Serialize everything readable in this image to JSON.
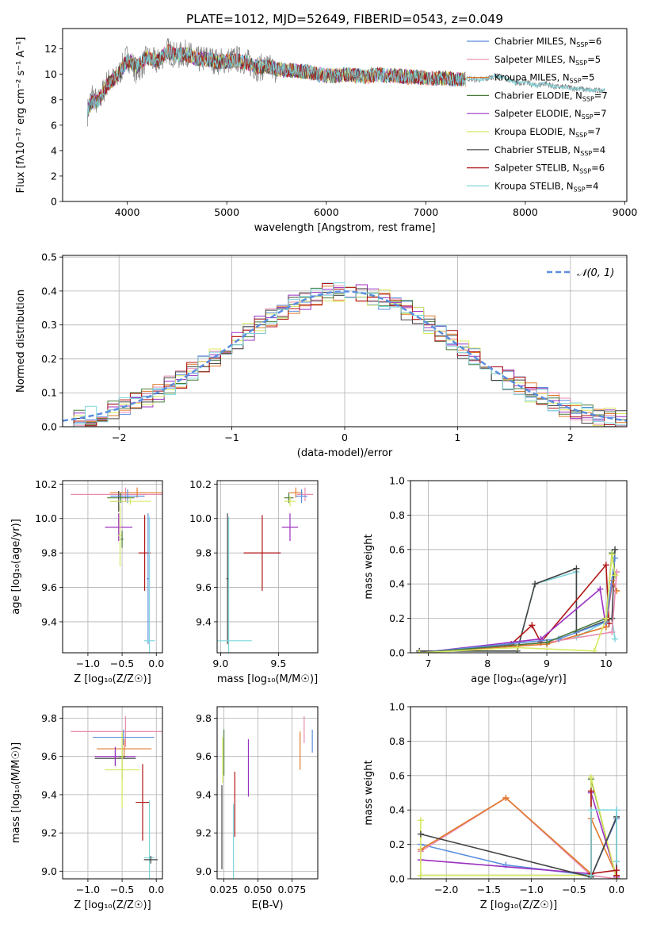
{
  "figure": {
    "title": "PLATE=1012, MJD=52649, FIBERID=0543, z=0.049"
  },
  "colors": {
    "chabrier_miles": "#5b8ee0",
    "salpeter_miles": "#e88ab0",
    "kroupa_miles": "#e07a2c",
    "chabrier_elodie": "#4a7a3a",
    "salpeter_elodie": "#9b30c0",
    "kroupa_elodie": "#d7e860",
    "chabrier_stelib": "#444444",
    "salpeter_stelib": "#b01515",
    "kroupa_stelib": "#7fd6dc",
    "spectrum": "#808080",
    "grid": "#b0b0b0",
    "normal_curve": "#5b8ee0"
  },
  "chart_data": [
    {
      "id": "spectrum",
      "type": "line",
      "xlabel": "wavelength [Angstrom, rest frame]",
      "ylabel": "Flux [fλ10⁻¹⁷ erg cm⁻² s⁻¹ A⁻¹]",
      "xlim": [
        3350,
        9020
      ],
      "ylim": [
        0,
        13.6
      ],
      "xticks": [
        4000,
        5000,
        6000,
        7000,
        8000,
        9000
      ],
      "yticks": [
        0,
        2,
        4,
        6,
        8,
        10,
        12
      ],
      "grid": false,
      "legend": "top-right",
      "data_flux": {
        "x": [
          3600,
          3650,
          3700,
          3800,
          3900,
          4000,
          4100,
          4200,
          4300,
          4400,
          4500,
          4600,
          4700,
          4800,
          4900,
          5000,
          5100,
          5200,
          5300,
          5400,
          5500,
          5600,
          5700,
          5800,
          5900,
          6000,
          6100,
          6200,
          6300,
          6400,
          6500,
          6600,
          6700,
          6800,
          6900,
          7000,
          7100,
          7200,
          7300,
          7400,
          7500,
          7600,
          7700,
          7800,
          7900,
          8000,
          8100,
          8200,
          8300,
          8400,
          8500,
          8600,
          8700,
          8800
        ],
        "y": [
          7.0,
          8.5,
          7.6,
          9.4,
          9.7,
          11.4,
          10.2,
          11.3,
          10.9,
          11.9,
          11.4,
          11.7,
          11.1,
          11.3,
          11.0,
          11.1,
          11.2,
          11.0,
          10.5,
          10.6,
          10.3,
          10.2,
          10.4,
          10.2,
          10.0,
          9.9,
          9.8,
          10.1,
          10.0,
          9.8,
          10.1,
          10.0,
          9.9,
          9.7,
          9.8,
          9.8,
          9.6,
          9.7,
          9.5,
          9.7,
          9.6,
          9.6,
          9.9,
          9.7,
          9.3,
          9.4,
          9.1,
          9.3,
          9.0,
          9.0,
          8.9,
          8.8,
          8.7,
          8.8
        ]
      },
      "model_flux": {
        "x": [
          3600,
          3650,
          3700,
          3800,
          3900,
          4000,
          4100,
          4200,
          4300,
          4400,
          4500,
          4600,
          4700,
          4800,
          4900,
          5000,
          5100,
          5200,
          5300,
          5400,
          5500,
          5600,
          5700,
          5800,
          5900,
          6000,
          6100,
          6200,
          6300,
          6400,
          6500,
          6600,
          6700,
          6800,
          6900,
          7000,
          7100,
          7200,
          7300,
          7400
        ],
        "y": [
          7.2,
          7.9,
          7.8,
          9.2,
          9.9,
          11.1,
          10.6,
          11.4,
          11.0,
          11.8,
          11.5,
          11.6,
          11.2,
          11.2,
          11.0,
          11.0,
          11.1,
          10.9,
          10.6,
          10.6,
          10.4,
          10.3,
          10.3,
          10.2,
          10.0,
          9.9,
          9.9,
          10.0,
          9.9,
          9.8,
          10.0,
          9.9,
          9.9,
          9.8,
          9.8,
          9.7,
          9.7,
          9.7,
          9.6,
          9.6
        ]
      },
      "legend_entries": [
        {
          "key": "chabrier_miles",
          "label": "Chabrier MILES, N",
          "sub": "SSP",
          "tail": "=6"
        },
        {
          "key": "salpeter_miles",
          "label": "Salpeter MILES, N",
          "sub": "SSP",
          "tail": "=5"
        },
        {
          "key": "kroupa_miles",
          "label": "Kroupa MILES, N",
          "sub": "SSP",
          "tail": "=5"
        },
        {
          "key": "chabrier_elodie",
          "label": "Chabrier ELODIE, N",
          "sub": "SSP",
          "tail": "=7"
        },
        {
          "key": "salpeter_elodie",
          "label": "Salpeter ELODIE, N",
          "sub": "SSP",
          "tail": "=7"
        },
        {
          "key": "kroupa_elodie",
          "label": "Kroupa ELODIE, N",
          "sub": "SSP",
          "tail": "=7"
        },
        {
          "key": "chabrier_stelib",
          "label": "Chabrier STELIB, N",
          "sub": "SSP",
          "tail": "=4"
        },
        {
          "key": "salpeter_stelib",
          "label": "Salpeter STELIB, N",
          "sub": "SSP",
          "tail": "=6"
        },
        {
          "key": "kroupa_stelib",
          "label": "Kroupa STELIB, N",
          "sub": "SSP",
          "tail": "=4"
        }
      ]
    },
    {
      "id": "residuals",
      "type": "histogram",
      "xlabel": "(data-model)/error",
      "ylabel": "Normed distribution",
      "xlim": [
        -2.5,
        2.5
      ],
      "ylim": [
        0,
        0.505
      ],
      "xticks": [
        -2,
        -1,
        0,
        1,
        2
      ],
      "yticks": [
        0.0,
        0.1,
        0.2,
        0.3,
        0.4,
        0.5
      ],
      "grid": true,
      "legend": "top-right",
      "legend_label": "𝒩(0, 1)",
      "bin_width": 0.1
    },
    {
      "id": "age_vs_Z",
      "type": "errorbar",
      "xlabel": "Z [log₁₀(Z/Z☉)]",
      "ylabel": "age  [log₁₀(age/yr)]",
      "xlim": [
        -1.37,
        0.09
      ],
      "ylim": [
        9.22,
        10.22
      ],
      "xticks": [
        -1.0,
        -0.5,
        0.0
      ],
      "yticks": [
        9.4,
        9.6,
        9.8,
        10.0,
        10.2
      ],
      "grid": true,
      "points": [
        {
          "key": "salpeter_miles",
          "x": -0.45,
          "xerr": 0.8,
          "y": 10.14,
          "yerr": 0.04
        },
        {
          "key": "kroupa_miles",
          "x": -0.28,
          "xerr": 0.4,
          "y": 10.15,
          "yerr": 0.03
        },
        {
          "key": "chabrier_miles",
          "x": -0.42,
          "xerr": 0.25,
          "y": 10.13,
          "yerr": 0.04
        },
        {
          "key": "chabrier_elodie",
          "x": -0.52,
          "xerr": 0.2,
          "y": 10.12,
          "yerr": 0.03
        },
        {
          "key": "chabrier_stelib",
          "x": -0.55,
          "xerr": 0.12,
          "y": 10.1,
          "yerr": 0.06
        },
        {
          "key": "kroupa_elodie",
          "x": -0.38,
          "xerr": 0.3,
          "y": 10.1,
          "yerr": 0.02
        },
        {
          "key": "salpeter_elodie",
          "x": -0.55,
          "xerr": 0.2,
          "y": 9.95,
          "yerr": 0.08
        },
        {
          "key": "kroupa_elodie",
          "x": -0.53,
          "xerr": 0.03,
          "y": 9.9,
          "yerr": 0.18
        },
        {
          "key": "chabrier_elodie",
          "x": -0.5,
          "xerr": 0.02,
          "y": 9.88,
          "yerr": 0.05
        },
        {
          "key": "salpeter_stelib",
          "x": -0.17,
          "xerr": 0.09,
          "y": 9.8,
          "yerr": 0.22
        },
        {
          "key": "chabrier_miles",
          "x": -0.12,
          "xerr": 0.02,
          "y": 9.65,
          "yerr": 0.38
        },
        {
          "key": "kroupa_stelib",
          "x": -0.1,
          "xerr": 0.08,
          "y": 9.29,
          "yerr": 0.72
        }
      ]
    },
    {
      "id": "age_vs_mass",
      "type": "errorbar",
      "xlabel": "mass [log₁₀(M/M☉)]",
      "ylabel": "",
      "xlim": [
        8.97,
        9.84
      ],
      "ylim": [
        9.22,
        10.22
      ],
      "xticks": [
        9.0,
        9.5
      ],
      "yticks": [
        9.4,
        9.6,
        9.8,
        10.0,
        10.2
      ],
      "grid": true,
      "points": [
        {
          "key": "salpeter_miles",
          "x": 9.73,
          "xerr": 0.07,
          "y": 10.14,
          "yerr": 0.04
        },
        {
          "key": "kroupa_miles",
          "x": 9.65,
          "xerr": 0.06,
          "y": 10.15,
          "yerr": 0.03
        },
        {
          "key": "chabrier_miles",
          "x": 9.7,
          "xerr": 0.05,
          "y": 10.13,
          "yerr": 0.04
        },
        {
          "key": "chabrier_elodie",
          "x": 9.59,
          "xerr": 0.04,
          "y": 10.12,
          "yerr": 0.03
        },
        {
          "key": "kroupa_elodie",
          "x": 9.6,
          "xerr": 0.05,
          "y": 10.1,
          "yerr": 0.03
        },
        {
          "key": "salpeter_elodie",
          "x": 9.6,
          "xerr": 0.07,
          "y": 9.95,
          "yerr": 0.08
        },
        {
          "key": "salpeter_stelib",
          "x": 9.36,
          "xerr": 0.16,
          "y": 9.8,
          "yerr": 0.22
        },
        {
          "key": "chabrier_stelib",
          "x": 9.06,
          "xerr": 0.01,
          "y": 9.65,
          "yerr": 0.38
        },
        {
          "key": "kroupa_stelib",
          "x": 9.07,
          "xerr": 0.2,
          "y": 9.29,
          "yerr": 0.72
        }
      ]
    },
    {
      "id": "weight_vs_age",
      "type": "line",
      "xlabel": "age  [log₁₀(age/yr)]",
      "ylabel": "mass weight",
      "xlim": [
        6.7,
        10.35
      ],
      "ylim": [
        0,
        1.0
      ],
      "xticks": [
        7,
        8,
        9,
        10
      ],
      "yticks": [
        0.0,
        0.2,
        0.4,
        0.6,
        0.8,
        1.0
      ],
      "grid": true,
      "series": [
        {
          "key": "kroupa_stelib",
          "x": [
            6.85,
            8.5,
            8.8,
            9.5,
            9.5,
            10.1,
            10.15
          ],
          "y": [
            0.01,
            0.01,
            0.4,
            0.47,
            0.09,
            0.2,
            0.08
          ]
        },
        {
          "key": "chabrier_stelib",
          "x": [
            6.85,
            8.5,
            8.8,
            9.5,
            9.5,
            10.1,
            10.15
          ],
          "y": [
            0.01,
            0.01,
            0.4,
            0.49,
            0.12,
            0.2,
            0.6
          ]
        },
        {
          "key": "salpeter_stelib",
          "x": [
            6.85,
            8.4,
            8.75,
            8.9,
            10.0,
            10.05
          ],
          "y": [
            0.0,
            0.05,
            0.16,
            0.06,
            0.51,
            0.17
          ]
        },
        {
          "key": "salpeter_elodie",
          "x": [
            6.85,
            8.9,
            9.9,
            10.0,
            10.1
          ],
          "y": [
            0.0,
            0.08,
            0.37,
            0.15,
            0.4
          ]
        },
        {
          "key": "kroupa_miles",
          "x": [
            6.85,
            9.0,
            10.0,
            10.1,
            10.18
          ],
          "y": [
            0.0,
            0.05,
            0.15,
            0.42,
            0.36
          ]
        },
        {
          "key": "salpeter_miles",
          "x": [
            6.85,
            9.0,
            10.1,
            10.18
          ],
          "y": [
            0.0,
            0.06,
            0.12,
            0.47
          ]
        },
        {
          "key": "chabrier_miles",
          "x": [
            6.85,
            9.2,
            10.0,
            10.15
          ],
          "y": [
            0.0,
            0.08,
            0.18,
            0.55
          ]
        },
        {
          "key": "chabrier_elodie",
          "x": [
            6.85,
            9.0,
            10.0,
            10.1,
            10.15
          ],
          "y": [
            0.0,
            0.06,
            0.2,
            0.58,
            0.45
          ]
        },
        {
          "key": "kroupa_elodie",
          "x": [
            6.85,
            8.5,
            9.8,
            10.0,
            10.1,
            10.15
          ],
          "y": [
            0.0,
            0.03,
            0.01,
            0.2,
            0.57,
            0.45
          ]
        }
      ]
    },
    {
      "id": "mass_vs_Z",
      "type": "errorbar",
      "xlabel": "Z [log₁₀(Z/Z☉)]",
      "ylabel": "mass [log₁₀(M/M☉)]",
      "xlim": [
        -1.37,
        0.09
      ],
      "ylim": [
        8.96,
        9.86
      ],
      "xticks": [
        -1.0,
        -0.5,
        0.0
      ],
      "yticks": [
        9.0,
        9.2,
        9.4,
        9.6,
        9.8
      ],
      "grid": true,
      "points": [
        {
          "key": "salpeter_miles",
          "x": -0.45,
          "xerr": 0.8,
          "y": 9.73,
          "yerr": 0.08
        },
        {
          "key": "chabrier_miles",
          "x": -0.48,
          "xerr": 0.45,
          "y": 9.7,
          "yerr": 0.04
        },
        {
          "key": "kroupa_miles",
          "x": -0.47,
          "xerr": 0.4,
          "y": 9.64,
          "yerr": 0.05
        },
        {
          "key": "chabrier_stelib",
          "x": -0.6,
          "xerr": 0.3,
          "y": 9.59,
          "yerr": 0.04
        },
        {
          "key": "salpeter_elodie",
          "x": -0.6,
          "xerr": 0.3,
          "y": 9.6,
          "yerr": 0.05
        },
        {
          "key": "chabrier_elodie",
          "x": -0.5,
          "xerr": 0.05,
          "y": 9.6,
          "yerr": 0.12
        },
        {
          "key": "kroupa_elodie",
          "x": -0.5,
          "xerr": 0.25,
          "y": 9.53,
          "yerr": 0.2
        },
        {
          "key": "salpeter_stelib",
          "x": -0.2,
          "xerr": 0.1,
          "y": 9.36,
          "yerr": 0.2
        },
        {
          "key": "kroupa_stelib",
          "x": -0.1,
          "xerr": 0.08,
          "y": 9.07,
          "yerr": 0.3
        },
        {
          "key": "chabrier_stelib",
          "x": -0.08,
          "xerr": 0.1,
          "y": 9.06,
          "yerr": 0.02
        }
      ]
    },
    {
      "id": "mass_vs_ebv",
      "type": "errorbar",
      "xlabel": "E(B-V)",
      "ylabel": "",
      "xlim": [
        0.02,
        0.094
      ],
      "ylim": [
        8.96,
        9.86
      ],
      "xticks": [
        0.025,
        0.05,
        0.075
      ],
      "yticks": [
        9.0,
        9.2,
        9.4,
        9.6,
        9.8
      ],
      "grid": true,
      "points": [
        {
          "key": "chabrier_stelib",
          "x": 0.0235,
          "y": 9.23,
          "yerr": 0.22
        },
        {
          "key": "kroupa_elodie",
          "x": 0.024,
          "y": 9.58,
          "yerr": 0.12
        },
        {
          "key": "chabrier_elodie",
          "x": 0.025,
          "y": 9.62,
          "yerr": 0.12
        },
        {
          "key": "kroupa_stelib",
          "x": 0.032,
          "y": 9.15,
          "yerr": 0.2
        },
        {
          "key": "salpeter_stelib",
          "x": 0.033,
          "y": 9.35,
          "yerr": 0.17
        },
        {
          "key": "salpeter_elodie",
          "x": 0.043,
          "y": 9.54,
          "yerr": 0.15
        },
        {
          "key": "kroupa_miles",
          "x": 0.081,
          "y": 9.63,
          "yerr": 0.1
        },
        {
          "key": "salpeter_miles",
          "x": 0.084,
          "y": 9.74,
          "yerr": 0.07
        },
        {
          "key": "chabrier_miles",
          "x": 0.09,
          "y": 9.68,
          "yerr": 0.06
        }
      ]
    },
    {
      "id": "weight_vs_Z",
      "type": "line",
      "xlabel": "Z [log₁₀(Z/Z☉)]",
      "ylabel": "mass weight",
      "xlim": [
        -2.42,
        0.12
      ],
      "ylim": [
        0,
        1.0
      ],
      "xticks": [
        -2.0,
        -1.5,
        -1.0,
        -0.5,
        0.0
      ],
      "yticks": [
        0.0,
        0.2,
        0.4,
        0.6,
        0.8,
        1.0
      ],
      "grid": true,
      "series": [
        {
          "key": "chabrier_miles",
          "x": [
            -2.3,
            -1.3,
            -0.3,
            -0.3,
            0.0,
            0.0
          ],
          "y": [
            0.2,
            0.08,
            0.02,
            0.01,
            0.35,
            0.4
          ]
        },
        {
          "key": "salpeter_miles",
          "x": [
            -2.3,
            -1.3,
            -0.3,
            0.0
          ],
          "y": [
            0.16,
            0.47,
            0.02,
            0.0
          ]
        },
        {
          "key": "kroupa_miles",
          "x": [
            -2.3,
            -1.3,
            -0.3,
            -0.3,
            0.0,
            0.0
          ],
          "y": [
            0.17,
            0.47,
            0.03,
            0.35,
            0.02,
            0.0
          ]
        },
        {
          "key": "chabrier_elodie",
          "x": [
            -2.3,
            -0.3,
            -0.3,
            0.0
          ],
          "y": [
            0.02,
            0.02,
            0.58,
            0.0
          ]
        },
        {
          "key": "salpeter_elodie",
          "x": [
            -2.3,
            -0.3,
            -0.3,
            0.0,
            0.0
          ],
          "y": [
            0.11,
            0.03,
            0.5,
            0.01,
            0.1
          ]
        },
        {
          "key": "kroupa_elodie",
          "x": [
            -2.3,
            -2.3,
            -0.3,
            -0.3,
            0.0
          ],
          "y": [
            0.34,
            0.02,
            0.02,
            0.59,
            0.0
          ]
        },
        {
          "key": "chabrier_stelib",
          "x": [
            -2.3,
            -0.3,
            0.0,
            0.0
          ],
          "y": [
            0.26,
            0.01,
            0.36,
            0.02
          ]
        },
        {
          "key": "salpeter_stelib",
          "x": [
            -0.3,
            -0.3,
            0.0,
            0.0
          ],
          "y": [
            0.51,
            0.03,
            0.05,
            0.02
          ]
        },
        {
          "key": "kroupa_stelib",
          "x": [
            -0.3,
            -0.3,
            0.0,
            0.0
          ],
          "y": [
            0.02,
            0.4,
            0.4,
            0.1
          ]
        }
      ]
    }
  ]
}
